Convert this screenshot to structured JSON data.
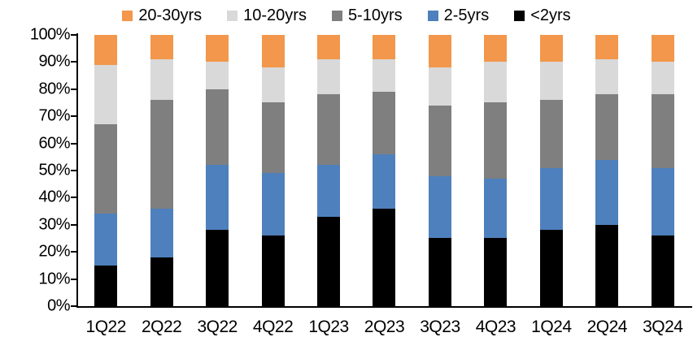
{
  "chart_data": {
    "type": "bar",
    "stacked": true,
    "percent_stacked": true,
    "title": "",
    "xlabel": "",
    "ylabel": "",
    "ylim": [
      0,
      100
    ],
    "grid": false,
    "legend_position": "top",
    "yticks": [
      "0%",
      "10%",
      "20%",
      "30%",
      "40%",
      "50%",
      "60%",
      "70%",
      "80%",
      "90%",
      "100%"
    ],
    "categories": [
      "1Q22",
      "2Q22",
      "3Q22",
      "4Q22",
      "1Q23",
      "2Q23",
      "3Q23",
      "4Q23",
      "1Q24",
      "2Q24",
      "3Q24"
    ],
    "series": [
      {
        "name": "20-30yrs",
        "color": "#F2974B",
        "values": [
          11,
          9,
          10,
          12,
          9,
          9,
          12,
          10,
          10,
          9,
          10
        ]
      },
      {
        "name": "10-20yrs",
        "color": "#D9D9D9",
        "values": [
          22,
          15,
          10,
          13,
          13,
          12,
          14,
          15,
          14,
          13,
          12
        ]
      },
      {
        "name": "5-10yrs",
        "color": "#7F7F7F",
        "values": [
          33,
          40,
          28,
          26,
          26,
          23,
          26,
          28,
          25,
          24,
          27
        ]
      },
      {
        "name": "2-5yrs",
        "color": "#4E80BD",
        "values": [
          19,
          18,
          24,
          23,
          19,
          20,
          23,
          22,
          23,
          24,
          25
        ]
      },
      {
        "name": "<2yrs",
        "color": "#000000",
        "values": [
          15,
          18,
          28,
          26,
          33,
          36,
          25,
          25,
          28,
          30,
          26
        ]
      }
    ],
    "axis_color": "#000000"
  }
}
